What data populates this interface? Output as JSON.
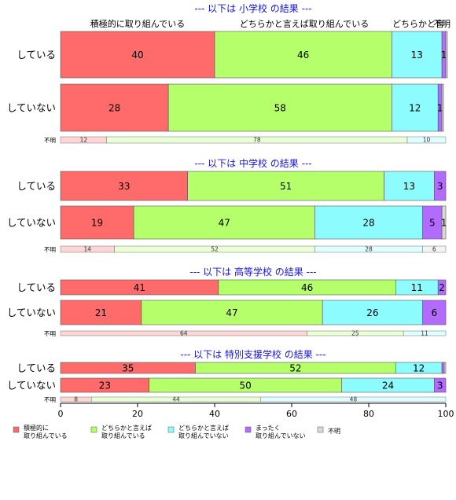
{
  "chart_data": {
    "type": "bar",
    "orientation": "horizontal",
    "stacked": true,
    "xlim": [
      0,
      100
    ],
    "x_ticks": [
      "0",
      "20",
      "40",
      "60",
      "80",
      "100"
    ],
    "top_category_labels": [
      "積極的に取り組んでいる",
      "どちらかと言えば取り組んでいる",
      "どちらかと言",
      "不明"
    ],
    "series": [
      {
        "name": "積極的に\n取り組んでいる",
        "color": "#ff6b6b"
      },
      {
        "name": "どちらかと言えば\n取り組んでいる",
        "color": "#b5ff6b"
      },
      {
        "name": "どちらかと言えば\n取り組んでいない",
        "color": "#8cfcff"
      },
      {
        "name": "まったく\n取り組んでいない",
        "color": "#b36bff"
      },
      {
        "name": "不明",
        "color": "#d9d9d9"
      }
    ],
    "sections": [
      {
        "title": "--- 以下は 小学校 の結果 ---",
        "rows": [
          {
            "label": "している",
            "values": [
              40,
              46,
              13,
              1,
              0.4
            ],
            "labels": [
              "40",
              "46",
              "13",
              "1",
              ""
            ]
          },
          {
            "label": "していない",
            "values": [
              28,
              58,
              12,
              1,
              0.4
            ],
            "labels": [
              "28",
              "58",
              "12",
              "1",
              ""
            ]
          },
          {
            "label": "不明",
            "small": true,
            "values": [
              12,
              78,
              10,
              0,
              0
            ],
            "labels": [
              "12",
              "78",
              "10",
              "",
              ""
            ]
          }
        ]
      },
      {
        "title": "--- 以下は 中学校 の結果 ---",
        "rows": [
          {
            "label": "している",
            "values": [
              33,
              51,
              13,
              3,
              0
            ],
            "labels": [
              "33",
              "51",
              "13",
              "3",
              ""
            ]
          },
          {
            "label": "していない",
            "values": [
              19,
              47,
              28,
              5,
              1
            ],
            "labels": [
              "19",
              "47",
              "28",
              "5",
              "1"
            ]
          },
          {
            "label": "不明",
            "small": true,
            "values": [
              14,
              52,
              28,
              0,
              6
            ],
            "labels": [
              "14",
              "52",
              "28",
              "",
              "6"
            ]
          }
        ]
      },
      {
        "title": "--- 以下は 高等学校 の結果 ---",
        "rows": [
          {
            "label": "している",
            "values": [
              41,
              46,
              11,
              2,
              0
            ],
            "labels": [
              "41",
              "46",
              "11",
              "2",
              ""
            ]
          },
          {
            "label": "していない",
            "values": [
              21,
              47,
              26,
              6,
              0
            ],
            "labels": [
              "21",
              "47",
              "26",
              "6",
              ""
            ]
          },
          {
            "label": "不明",
            "small": true,
            "values": [
              64,
              25,
              11,
              0,
              0
            ],
            "labels": [
              "64",
              "25",
              "11",
              "",
              ""
            ]
          }
        ]
      },
      {
        "title": "--- 以下は 特別支援学校 の結果 ---",
        "rows": [
          {
            "label": "している",
            "values": [
              35,
              52,
              12,
              0.6,
              0.4
            ],
            "labels": [
              "35",
              "52",
              "12",
              "",
              ""
            ]
          },
          {
            "label": "していない",
            "values": [
              23,
              50,
              24,
              3,
              0
            ],
            "labels": [
              "23",
              "50",
              "24",
              "3",
              ""
            ]
          },
          {
            "label": "不明",
            "small": true,
            "values": [
              8,
              44,
              48,
              0,
              0
            ],
            "labels": [
              "8",
              "44",
              "48",
              "",
              ""
            ]
          }
        ]
      }
    ]
  }
}
